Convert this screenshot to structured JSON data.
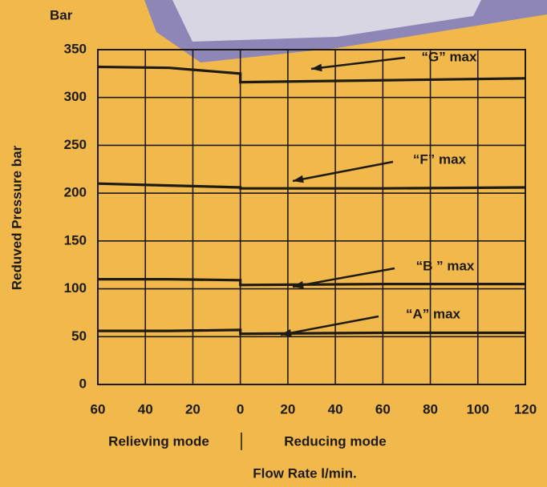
{
  "chart_data": {
    "type": "line",
    "y_unit": "Bar",
    "ylabel": "Reduved Pressure bar",
    "xlabel": "Flow Rate l/min.",
    "x_left_caption": "Relieving mode",
    "x_right_caption": "Reducing mode",
    "x": [
      -60,
      -30,
      0,
      0,
      60,
      120
    ],
    "series": [
      {
        "name": "“G” max",
        "color": "#1e1a14",
        "values": [
          332,
          331,
          325,
          316,
          318,
          320
        ]
      },
      {
        "name": "“F” max",
        "color": "#1e1a14",
        "values": [
          210,
          208,
          206,
          205,
          205,
          206
        ]
      },
      {
        "name": "“B ” max",
        "color": "#1e1a14",
        "values": [
          110,
          110,
          109,
          104,
          105,
          105
        ]
      },
      {
        "name": "“A” max",
        "color": "#1e1a14",
        "values": [
          56,
          56,
          57,
          53,
          54,
          54
        ]
      }
    ],
    "xlim": [
      -60,
      120
    ],
    "xticks": [
      {
        "value": -60,
        "label": "60"
      },
      {
        "value": -40,
        "label": "40"
      },
      {
        "value": -20,
        "label": "20"
      },
      0,
      20,
      40,
      60,
      80,
      100,
      120
    ],
    "ylim": [
      0,
      350
    ],
    "yticks": [
      0,
      50,
      100,
      150,
      200,
      250,
      300,
      350
    ],
    "grid": true
  }
}
